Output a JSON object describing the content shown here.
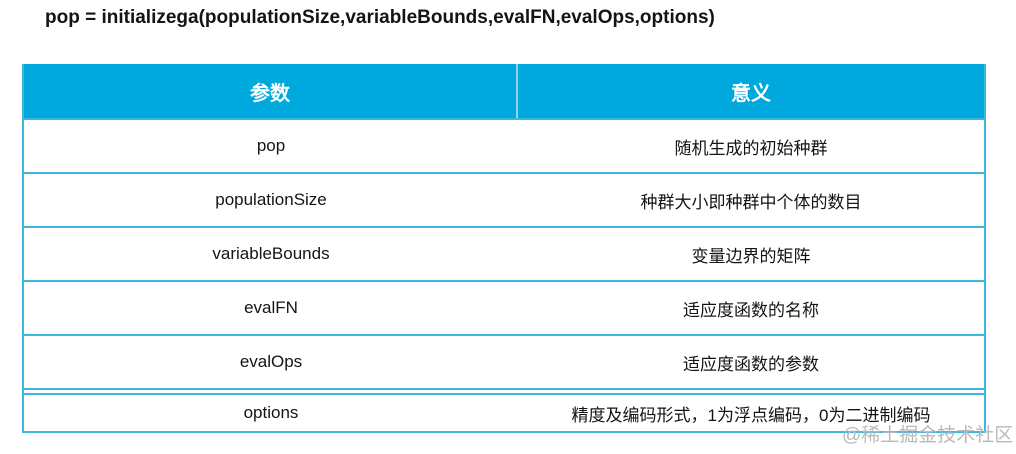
{
  "title": "pop = initializega(populationSize,variableBounds,evalFN,evalOps,options)",
  "colors": {
    "header_bg": "#00a9dd",
    "border": "#3cb8e0",
    "text": "#141414",
    "watermark": "#b9b9b9"
  },
  "table": {
    "headers": [
      "参数",
      "意义"
    ],
    "rows": [
      {
        "param": "pop",
        "meaning": "随机生成的初始种群"
      },
      {
        "param": "populationSize",
        "meaning": "种群大小即种群中个体的数目"
      },
      {
        "param": "variableBounds",
        "meaning": "变量边界的矩阵"
      },
      {
        "param": "evalFN",
        "meaning": "适应度函数的名称"
      },
      {
        "param": "evalOps",
        "meaning": "适应度函数的参数"
      },
      {
        "param": "options",
        "meaning": "精度及编码形式，1为浮点编码，0为二进制编码"
      }
    ]
  },
  "watermark": "@稀土掘金技术社区"
}
